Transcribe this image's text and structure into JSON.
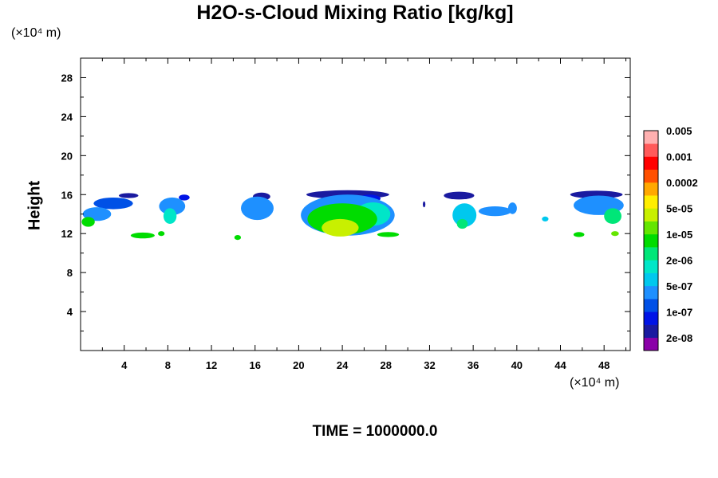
{
  "chart_data": {
    "type": "heatmap",
    "title": "H2O-s-Cloud Mixing Ratio [kg/kg]",
    "ylabel": "Height",
    "y_unit": "(×10⁴ m)",
    "x_unit": "(×10⁴ m)",
    "footer_label": "TIME =",
    "footer_value": "1000000.0",
    "xlim": [
      0,
      50.4
    ],
    "ylim": [
      0,
      30
    ],
    "x_ticks": [
      "4",
      "8",
      "12",
      "16",
      "20",
      "24",
      "28",
      "32",
      "36",
      "40",
      "44",
      "48"
    ],
    "x_tick_values": [
      4,
      8,
      12,
      16,
      20,
      24,
      28,
      32,
      36,
      40,
      44,
      48
    ],
    "y_ticks": [
      "4",
      "8",
      "12",
      "16",
      "20",
      "24",
      "28"
    ],
    "y_tick_values": [
      4,
      8,
      12,
      16,
      20,
      24,
      28
    ],
    "colorbar": {
      "colors": [
        "#8a00a8",
        "#1a1aa0",
        "#0014e6",
        "#0050e6",
        "#1e90ff",
        "#00c8ee",
        "#00e6c8",
        "#00e678",
        "#00dc00",
        "#64e600",
        "#c8f000",
        "#ffee00",
        "#ffa800",
        "#ff5000",
        "#ff0000",
        "#ff5a5a",
        "#ffb0b0"
      ],
      "labels": [
        "2e-08",
        "1e-07",
        "5e-07",
        "2e-06",
        "1e-05",
        "5e-05",
        "0.0002",
        "0.001",
        "0.005"
      ]
    },
    "clouds": [
      {
        "x": 1.5,
        "y": 14.0,
        "rx": 1.3,
        "ry": 0.7,
        "level": 4
      },
      {
        "x": 3.0,
        "y": 15.1,
        "rx": 1.8,
        "ry": 0.6,
        "level": 3
      },
      {
        "x": 4.4,
        "y": 15.9,
        "rx": 0.9,
        "ry": 0.25,
        "level": 1
      },
      {
        "x": 0.7,
        "y": 13.2,
        "rx": 0.6,
        "ry": 0.5,
        "level": 8
      },
      {
        "x": 5.7,
        "y": 11.8,
        "rx": 1.1,
        "ry": 0.3,
        "level": 8
      },
      {
        "x": 8.4,
        "y": 14.8,
        "rx": 1.2,
        "ry": 0.9,
        "level": 4
      },
      {
        "x": 8.2,
        "y": 13.8,
        "rx": 0.6,
        "ry": 0.8,
        "level": 6
      },
      {
        "x": 9.5,
        "y": 15.7,
        "rx": 0.5,
        "ry": 0.3,
        "level": 2
      },
      {
        "x": 7.4,
        "y": 12.0,
        "rx": 0.3,
        "ry": 0.25,
        "level": 8
      },
      {
        "x": 16.2,
        "y": 14.6,
        "rx": 1.5,
        "ry": 1.2,
        "level": 4
      },
      {
        "x": 16.6,
        "y": 15.8,
        "rx": 0.8,
        "ry": 0.4,
        "level": 1
      },
      {
        "x": 14.4,
        "y": 11.6,
        "rx": 0.3,
        "ry": 0.25,
        "level": 8
      },
      {
        "x": 24.5,
        "y": 13.9,
        "rx": 4.3,
        "ry": 2.1,
        "level": 4
      },
      {
        "x": 24.0,
        "y": 13.5,
        "rx": 3.2,
        "ry": 1.6,
        "level": 8
      },
      {
        "x": 23.8,
        "y": 12.6,
        "rx": 1.7,
        "ry": 0.9,
        "level": 10
      },
      {
        "x": 24.5,
        "y": 16.0,
        "rx": 3.8,
        "ry": 0.45,
        "level": 1
      },
      {
        "x": 26.8,
        "y": 14.0,
        "rx": 1.6,
        "ry": 1.2,
        "level": 6
      },
      {
        "x": 28.2,
        "y": 11.9,
        "rx": 1.0,
        "ry": 0.25,
        "level": 8
      },
      {
        "x": 26.5,
        "y": 15.6,
        "rx": 1.0,
        "ry": 0.4,
        "level": 2
      },
      {
        "x": 31.5,
        "y": 15.0,
        "rx": 0.12,
        "ry": 0.3,
        "level": 1
      },
      {
        "x": 34.7,
        "y": 15.9,
        "rx": 1.4,
        "ry": 0.4,
        "level": 1
      },
      {
        "x": 35.2,
        "y": 13.9,
        "rx": 1.1,
        "ry": 1.2,
        "level": 5
      },
      {
        "x": 35.0,
        "y": 13.0,
        "rx": 0.5,
        "ry": 0.5,
        "level": 7
      },
      {
        "x": 38.0,
        "y": 14.3,
        "rx": 1.5,
        "ry": 0.5,
        "level": 4
      },
      {
        "x": 39.6,
        "y": 14.6,
        "rx": 0.4,
        "ry": 0.6,
        "level": 4
      },
      {
        "x": 42.6,
        "y": 13.5,
        "rx": 0.3,
        "ry": 0.25,
        "level": 5
      },
      {
        "x": 47.5,
        "y": 14.9,
        "rx": 2.3,
        "ry": 1.0,
        "level": 4
      },
      {
        "x": 47.3,
        "y": 16.0,
        "rx": 2.4,
        "ry": 0.4,
        "level": 1
      },
      {
        "x": 48.8,
        "y": 13.8,
        "rx": 0.8,
        "ry": 0.8,
        "level": 7
      },
      {
        "x": 45.7,
        "y": 11.9,
        "rx": 0.5,
        "ry": 0.25,
        "level": 8
      },
      {
        "x": 49.0,
        "y": 12.0,
        "rx": 0.35,
        "ry": 0.25,
        "level": 9
      }
    ]
  }
}
